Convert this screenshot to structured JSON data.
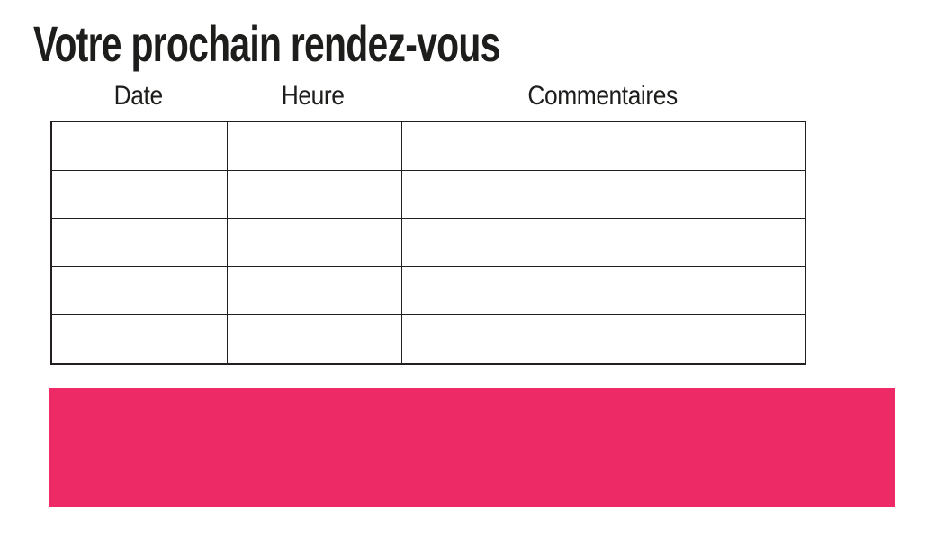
{
  "page": {
    "title": "Votre prochain rendez-vous"
  },
  "colors": {
    "accent": "#ee2a66",
    "text": "#1d1d1b",
    "table_border": "#231f20"
  },
  "table": {
    "headers": [
      {
        "label": "Date"
      },
      {
        "label": "Heure"
      },
      {
        "label": "Commentaires"
      }
    ],
    "rows": [
      {
        "date": "",
        "heure": "",
        "commentaires": ""
      },
      {
        "date": "",
        "heure": "",
        "commentaires": ""
      },
      {
        "date": "",
        "heure": "",
        "commentaires": ""
      },
      {
        "date": "",
        "heure": "",
        "commentaires": ""
      },
      {
        "date": "",
        "heure": "",
        "commentaires": ""
      }
    ]
  },
  "highlight": {
    "label": ""
  }
}
